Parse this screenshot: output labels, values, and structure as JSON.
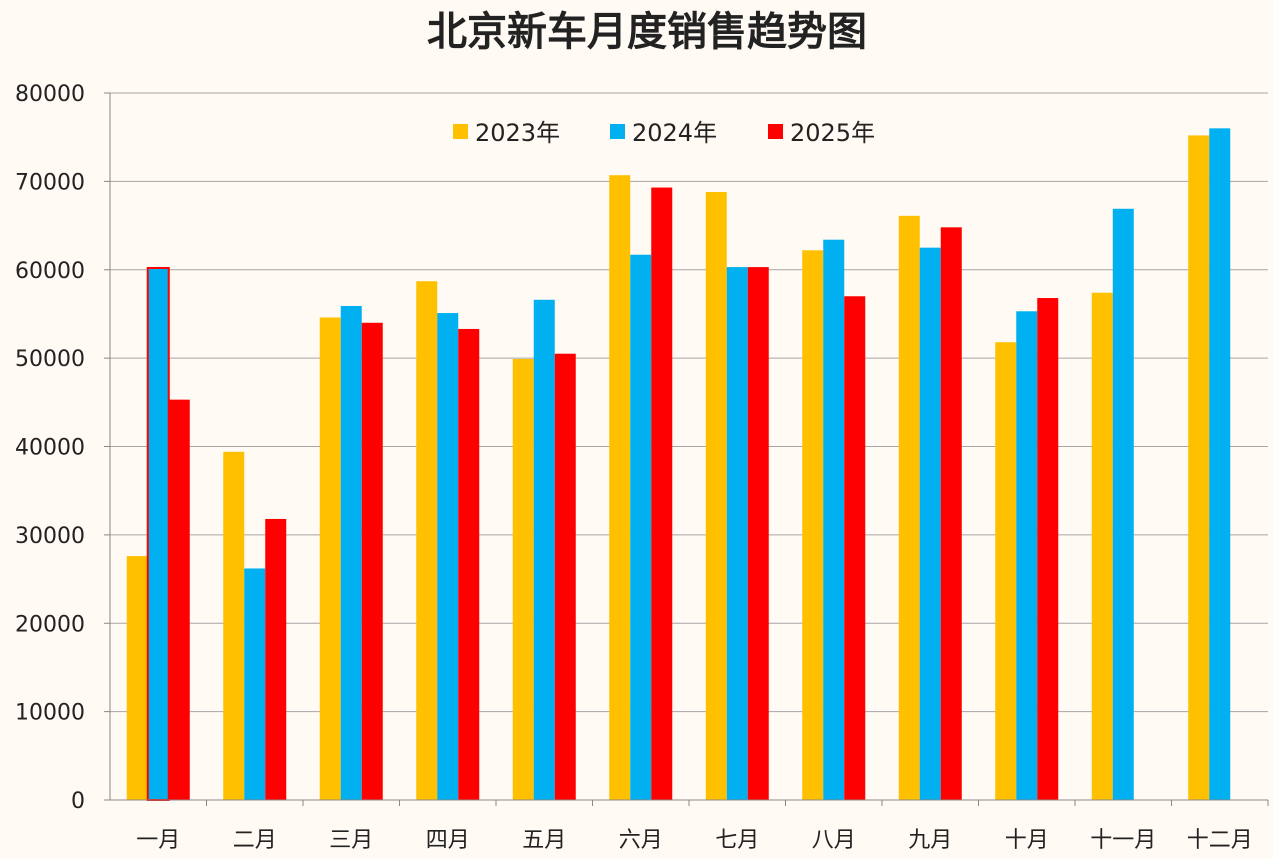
{
  "chart_data": {
    "type": "bar",
    "title": "北京新车月度销售趋势图",
    "xlabel": "",
    "ylabel": "",
    "ylim": [
      0,
      80000
    ],
    "yticks": [
      "0",
      "10000",
      "20000",
      "30000",
      "40000",
      "50000",
      "60000",
      "70000",
      "80000"
    ],
    "grid": true,
    "legend_position": "top-center",
    "categories": [
      "一月",
      "二月",
      "三月",
      "四月",
      "五月",
      "六月",
      "七月",
      "八月",
      "九月",
      "十月",
      "十一月",
      "十二月"
    ],
    "series": [
      {
        "name": "2023年",
        "color": "#ffc000",
        "values": [
          27600,
          39400,
          54600,
          58700,
          49900,
          70700,
          68800,
          62200,
          66100,
          51800,
          57400,
          75200
        ]
      },
      {
        "name": "2024年",
        "color": "#00b0f0",
        "values": [
          60200,
          26200,
          55900,
          55100,
          56600,
          61700,
          60300,
          63400,
          62500,
          55300,
          66900,
          76000
        ]
      },
      {
        "name": "2025年",
        "color": "#ff0000",
        "values": [
          45300,
          31800,
          54000,
          53300,
          50500,
          69300,
          60300,
          57000,
          64800,
          56800,
          null,
          null
        ]
      }
    ]
  }
}
